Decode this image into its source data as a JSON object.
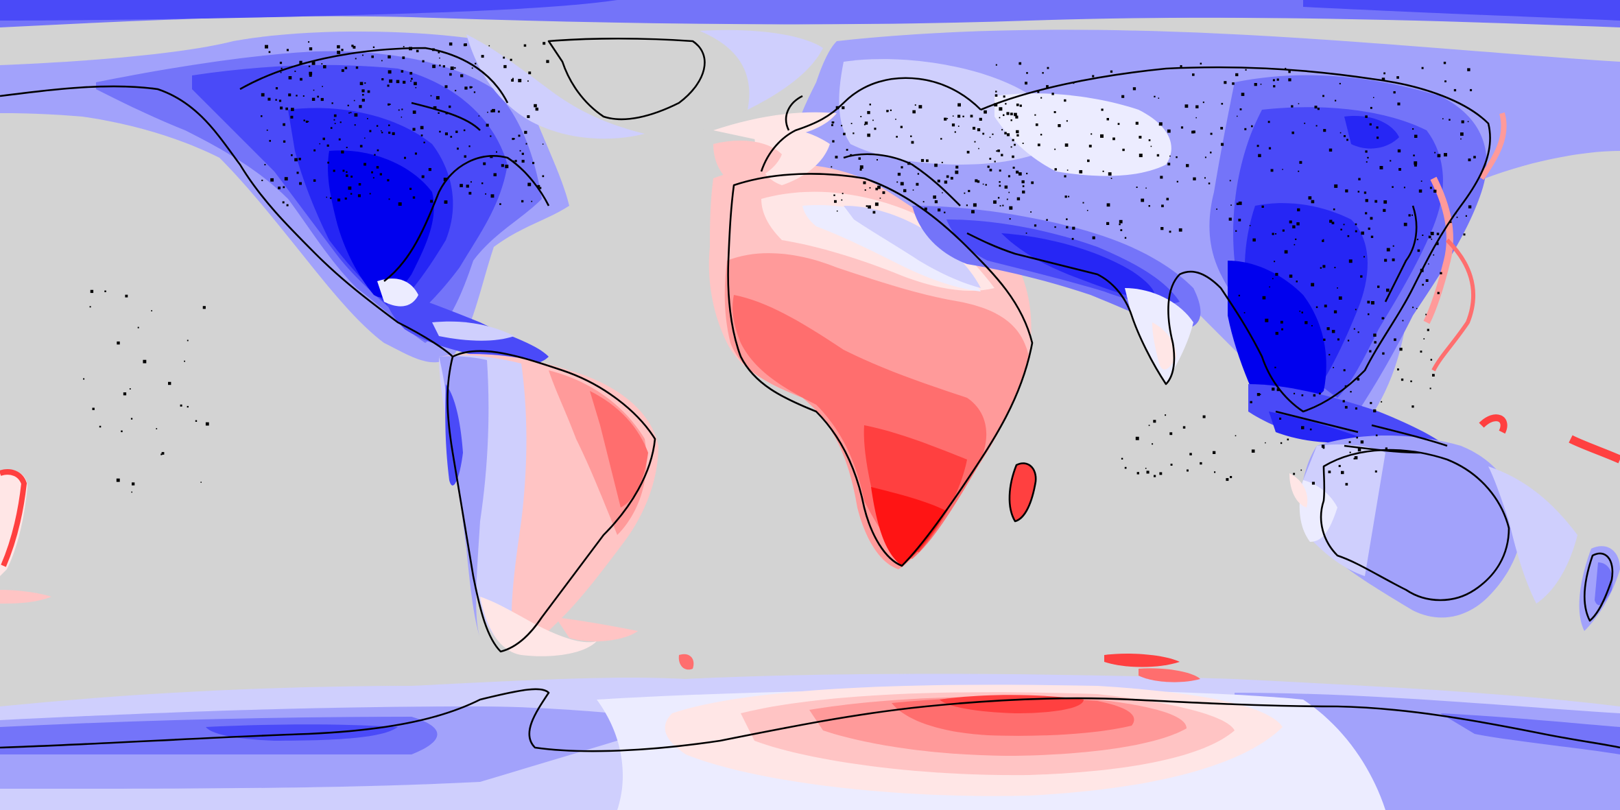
{
  "map": {
    "projection": "equirectangular",
    "background_color": "#d3d3d3",
    "coastline_color": "#000000",
    "color_scale": [
      "#0000ee",
      "#2626f5",
      "#4a4af8",
      "#7474f9",
      "#a2a2fb",
      "#cfcffd",
      "#ececff",
      "#ffe6e6",
      "#ffc4c4",
      "#ff9a9a",
      "#ff6e6e",
      "#ff4040",
      "#ff1414"
    ],
    "regions": [
      {
        "name": "north-america",
        "value": "negative-strong"
      },
      {
        "name": "south-america-west",
        "value": "negative"
      },
      {
        "name": "south-america-east",
        "value": "positive"
      },
      {
        "name": "africa",
        "value": "positive-strong"
      },
      {
        "name": "europe",
        "value": "near-zero"
      },
      {
        "name": "asia",
        "value": "negative-strong"
      },
      {
        "name": "australia",
        "value": "negative-weak"
      },
      {
        "name": "antarctica-east",
        "value": "positive"
      },
      {
        "name": "antarctica-west",
        "value": "negative"
      },
      {
        "name": "greenland",
        "value": "negative-weak"
      }
    ]
  }
}
